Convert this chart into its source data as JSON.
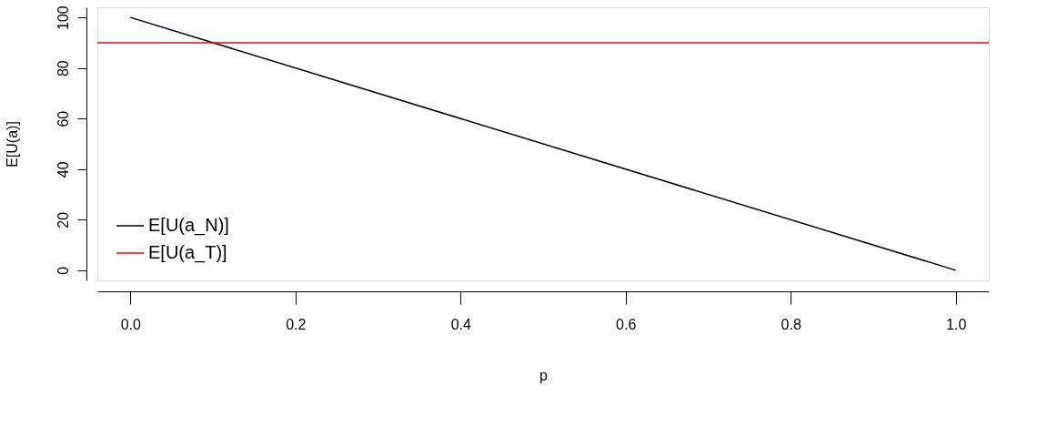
{
  "chart_data": {
    "type": "line",
    "xlabel": "p",
    "ylabel": "E[U(a)]",
    "xlim": [
      -0.04,
      1.04
    ],
    "ylim": [
      -4,
      104
    ],
    "xticks": [
      {
        "value": 0,
        "label": "0.0"
      },
      0.2,
      0.4,
      0.6,
      0.8,
      {
        "value": 1,
        "label": "1.0"
      }
    ],
    "yticks": [
      0,
      20,
      40,
      60,
      80,
      100
    ],
    "series": [
      {
        "name": "E[U(a_N)]",
        "color": "#000000",
        "x": [
          0,
          1
        ],
        "values": [
          100,
          0
        ]
      },
      {
        "name": "E[U(a_T)]",
        "color": "#ff0000",
        "x": [
          -0.04,
          1.04
        ],
        "values": [
          90,
          90
        ]
      }
    ],
    "grid": false,
    "legend": "bottom left",
    "line_style": "solid",
    "marker": "none"
  }
}
